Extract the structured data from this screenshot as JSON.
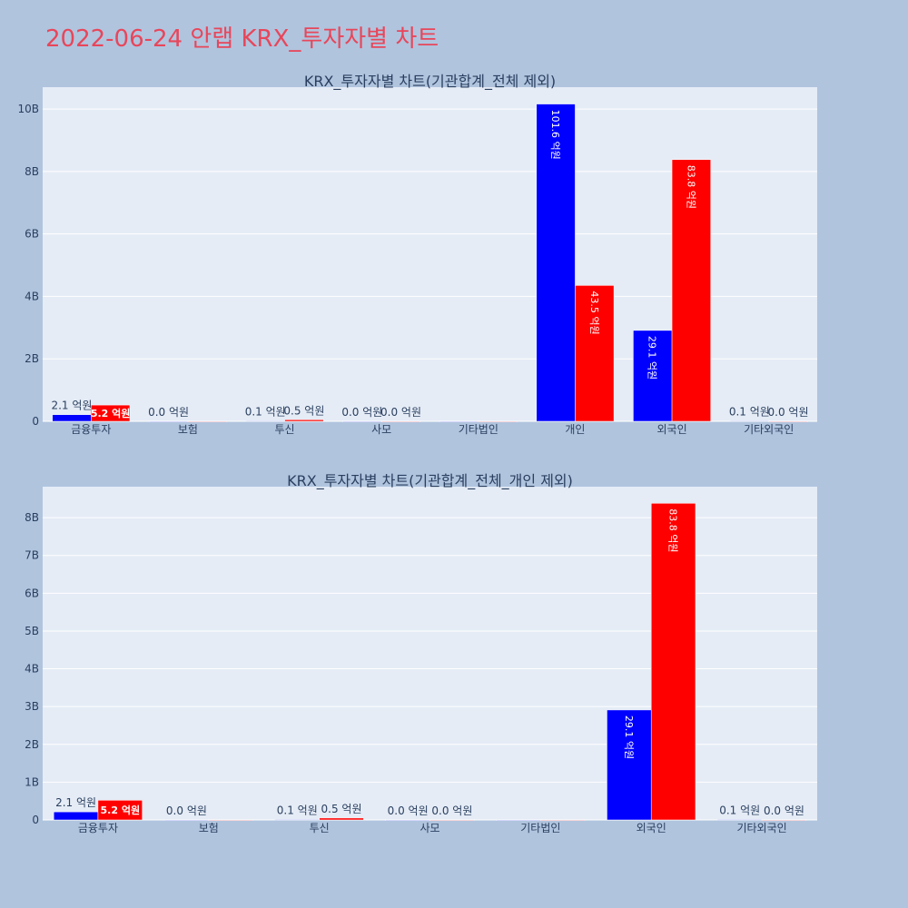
{
  "page_title": "2022-06-24 안랩 KRX_투자자별 차트",
  "colors": {
    "buy": "#0000ff",
    "sell": "#ff0000",
    "plot_bg": "#e5ecf6",
    "page_bg": "#b0c4de",
    "title": "#e8465a"
  },
  "chart_data": [
    {
      "type": "bar",
      "title": "KRX_투자자별 차트(기관합계_전체 제외)",
      "categories": [
        "금융투자",
        "보험",
        "투신",
        "사모",
        "기타법인",
        "개인",
        "외국인",
        "기타외국인"
      ],
      "series": [
        {
          "values": [
            213000000,
            0,
            10000000,
            0,
            0,
            10160000000,
            2910000000,
            10000000
          ],
          "labels": [
            "2.1 억원",
            "0.0 억원",
            "0.1 억원",
            "0.0 억원",
            "",
            "101.6 억원",
            "29.1 억원",
            "0.1 억원"
          ]
        },
        {
          "values": [
            520000000,
            0,
            50000000,
            0,
            0,
            4350000000,
            8380000000,
            0
          ],
          "labels": [
            "5.2 억원",
            "",
            "0.5 억원",
            "0.0 억원",
            "",
            "43.5 억원",
            "83.8 억원",
            "0.0 억원"
          ]
        }
      ],
      "yticks": [
        "0",
        "2B",
        "4B",
        "6B",
        "8B",
        "10B"
      ],
      "ytick_values": [
        0,
        2000000000,
        4000000000,
        6000000000,
        8000000000,
        10000000000
      ],
      "ylim": [
        0,
        10700000000
      ],
      "grid": true
    },
    {
      "type": "bar",
      "title": "KRX_투자자별 차트(기관합계_전체_개인 제외)",
      "categories": [
        "금융투자",
        "보험",
        "투신",
        "사모",
        "기타법인",
        "외국인",
        "기타외국인"
      ],
      "series": [
        {
          "values": [
            213000000,
            0,
            10000000,
            0,
            0,
            2910000000,
            10000000
          ],
          "labels": [
            "2.1 억원",
            "0.0 억원",
            "0.1 억원",
            "0.0 억원",
            "",
            "29.1 억원",
            "0.1 억원"
          ]
        },
        {
          "values": [
            520000000,
            0,
            50000000,
            0,
            0,
            8380000000,
            0
          ],
          "labels": [
            "5.2 억원",
            "",
            "0.5 억원",
            "0.0 억원",
            "",
            "83.8 억원",
            "0.0 억원"
          ]
        }
      ],
      "yticks": [
        "0",
        "1B",
        "2B",
        "3B",
        "4B",
        "5B",
        "6B",
        "7B",
        "8B"
      ],
      "ytick_values": [
        0,
        1000000000,
        2000000000,
        3000000000,
        4000000000,
        5000000000,
        6000000000,
        7000000000,
        8000000000
      ],
      "ylim": [
        0,
        8820000000
      ],
      "grid": true
    }
  ]
}
